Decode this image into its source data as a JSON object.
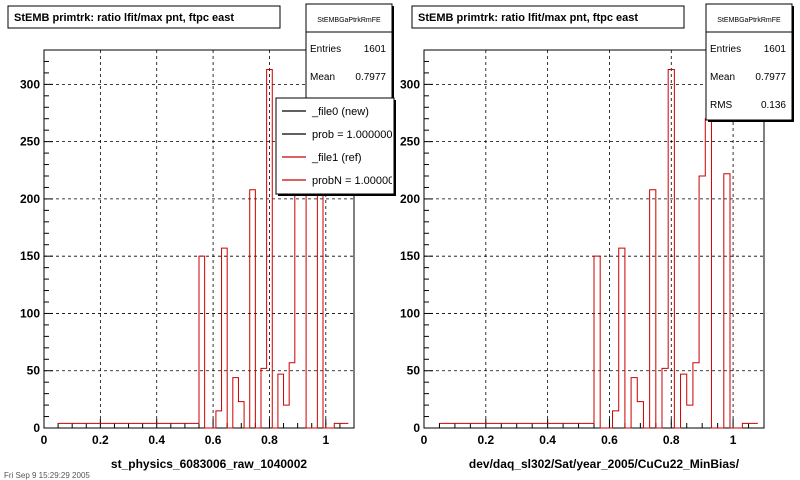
{
  "footer_text": "Fri Sep 9 15:29:29 2005",
  "chart_data": [
    {
      "type": "bar",
      "title": "StEMB primtrk: ratio lfit/max pnt, ftpc east",
      "xlabel": "st_physics_6083006_raw_1040002",
      "ylabel": "",
      "xlim": [
        0,
        1.1
      ],
      "ylim": [
        0,
        330
      ],
      "xticks": [
        "0",
        "0.2",
        "0.4",
        "0.6",
        "0.8",
        "1"
      ],
      "yticks": [
        "0",
        "50",
        "100",
        "150",
        "200",
        "250",
        "300"
      ],
      "grid": true,
      "stats": {
        "title": "StEMBGaPtrkRmFE",
        "rows": [
          {
            "label": "Entries",
            "value": "1601"
          },
          {
            "label": "Mean",
            "value": "0.7977"
          }
        ]
      },
      "legend": {
        "placement": "top-right",
        "entries": [
          {
            "label": "_file0 (new)",
            "color": "#000000"
          },
          {
            "label": "prob = 1.000000",
            "color": "#000000"
          },
          {
            "label": "_file1 (ref)",
            "color": "#cc0000"
          },
          {
            "label": "probN = 1.000000",
            "color": "#cc0000"
          }
        ]
      },
      "series": [
        {
          "color": "#cc0000",
          "bins": [
            [
              0.55,
              0.57,
              150
            ],
            [
              0.61,
              0.63,
              15
            ],
            [
              0.63,
              0.65,
              157
            ],
            [
              0.67,
              0.69,
              44
            ],
            [
              0.69,
              0.71,
              23
            ],
            [
              0.73,
              0.75,
              208
            ],
            [
              0.75,
              0.77,
              0
            ],
            [
              0.77,
              0.79,
              52
            ],
            [
              0.79,
              0.81,
              313
            ],
            [
              0.83,
              0.85,
              47
            ],
            [
              0.85,
              0.87,
              20
            ],
            [
              0.87,
              0.89,
              57
            ],
            [
              0.89,
              0.91,
              220
            ],
            [
              0.91,
              0.93,
              270
            ],
            [
              0.97,
              0.99,
              222
            ]
          ]
        }
      ]
    },
    {
      "type": "bar",
      "title": "StEMB primtrk: ratio lfit/max pnt, ftpc east",
      "xlabel": "dev/daq_sl302/Sat/year_2005/CuCu22_MinBias/",
      "ylabel": "",
      "xlim": [
        0,
        1.1
      ],
      "ylim": [
        0,
        330
      ],
      "xticks": [
        "0",
        "0.2",
        "0.4",
        "0.6",
        "0.8",
        "1"
      ],
      "yticks": [
        "0",
        "50",
        "100",
        "150",
        "200",
        "250",
        "300"
      ],
      "grid": true,
      "stats": {
        "title": "StEMBGaPtrkRmFE",
        "rows": [
          {
            "label": "Entries",
            "value": "1601"
          },
          {
            "label": "Mean",
            "value": "0.7977"
          },
          {
            "label": "RMS",
            "value": "0.136"
          }
        ]
      },
      "series": [
        {
          "color": "#cc0000",
          "bins": [
            [
              0.55,
              0.57,
              150
            ],
            [
              0.61,
              0.63,
              15
            ],
            [
              0.63,
              0.65,
              157
            ],
            [
              0.67,
              0.69,
              44
            ],
            [
              0.69,
              0.71,
              23
            ],
            [
              0.73,
              0.75,
              208
            ],
            [
              0.75,
              0.77,
              0
            ],
            [
              0.77,
              0.79,
              52
            ],
            [
              0.79,
              0.81,
              313
            ],
            [
              0.83,
              0.85,
              47
            ],
            [
              0.85,
              0.87,
              20
            ],
            [
              0.87,
              0.89,
              57
            ],
            [
              0.89,
              0.91,
              220
            ],
            [
              0.91,
              0.93,
              270
            ],
            [
              0.97,
              0.99,
              222
            ]
          ]
        }
      ]
    }
  ]
}
